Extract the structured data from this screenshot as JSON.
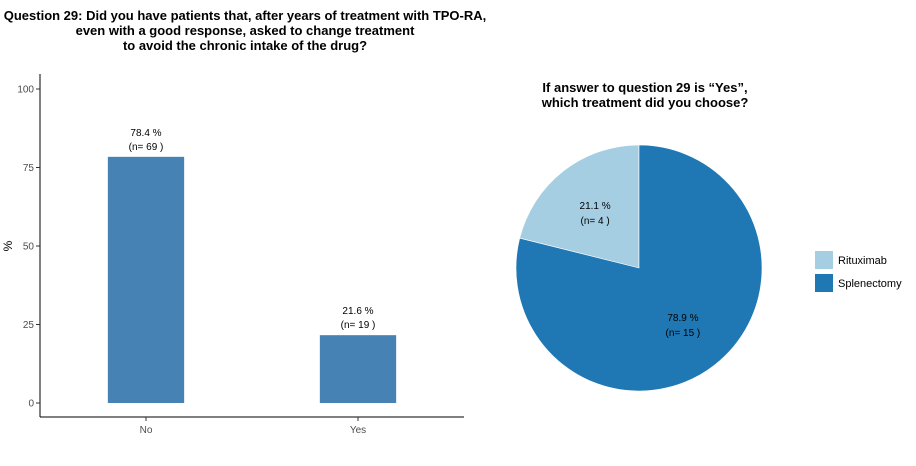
{
  "chart_data": [
    {
      "type": "bar",
      "title": [
        "Question 29: Did you have patients that, after years of treatment with TPO-RA,",
        "even with a good response, asked to change treatment",
        "to avoid the chronic intake of the drug?"
      ],
      "categories": [
        "No",
        "Yes"
      ],
      "values": [
        78.4,
        21.6
      ],
      "counts": [
        69,
        19
      ],
      "labels_pct": [
        "78.4 %",
        "21.6 %"
      ],
      "labels_n": [
        "(n= 69 )",
        "(n= 19 )"
      ],
      "ylabel": "%",
      "xlabel": "",
      "ylim": [
        0,
        100
      ],
      "yticks": [
        0,
        25,
        50,
        75,
        100
      ],
      "color": "#4682b4",
      "grid": false
    },
    {
      "type": "pie",
      "title": [
        "If answer to question 29 is “Yes”,",
        "which treatment did you choose?"
      ],
      "slices": [
        {
          "name": "Rituximab",
          "value": 21.1,
          "count": 4,
          "label_pct": "21.1 %",
          "label_n": "(n= 4 )",
          "color": "#a6cee3"
        },
        {
          "name": "Splenectomy",
          "value": 78.9,
          "count": 15,
          "label_pct": "78.9 %",
          "label_n": "(n= 15 )",
          "color": "#1f78b4"
        }
      ],
      "legend_position": "right"
    }
  ]
}
